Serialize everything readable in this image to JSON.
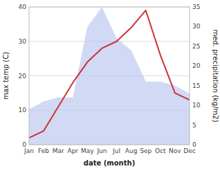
{
  "chart_data": {
    "type": "line",
    "categories": [
      "Jan",
      "Feb",
      "Mar",
      "Apr",
      "May",
      "Jun",
      "Jul",
      "Aug",
      "Sep",
      "Oct",
      "Nov",
      "Dec"
    ],
    "series": [
      {
        "type": "area",
        "axis": "y2",
        "color": "#b8c4ee",
        "values": [
          9,
          11,
          12,
          12,
          30,
          35,
          27,
          24,
          16,
          16,
          15,
          13
        ]
      },
      {
        "type": "line",
        "color": "#cc3333",
        "values": [
          2,
          4,
          11,
          18,
          24,
          28,
          30,
          34,
          39,
          26,
          15,
          13
        ]
      }
    ],
    "x_label": "date (month)",
    "y_label": "max temp (C)",
    "y2_label": "med. precipitation (kg/m2)",
    "ylim": [
      0,
      40
    ],
    "yticks": [
      0,
      10,
      20,
      30,
      40
    ],
    "y2lim": [
      0,
      35
    ],
    "y2ticks": [
      0,
      5,
      10,
      15,
      20,
      25,
      30,
      35
    ],
    "grid": true
  }
}
